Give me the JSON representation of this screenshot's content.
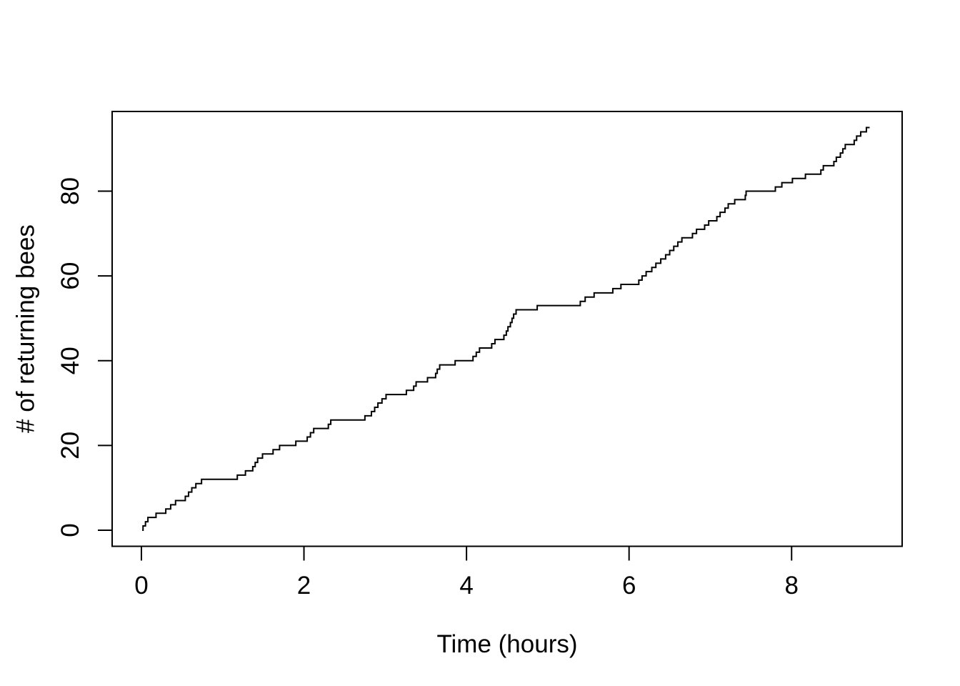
{
  "chart_data": {
    "type": "line",
    "subtype": "step-cumulative",
    "title": "",
    "xlabel": "Time (hours)",
    "ylabel": "# of returning bees",
    "xlim": [
      0,
      9
    ],
    "ylim": [
      0,
      95
    ],
    "axis_expansion": 0.04,
    "x_ticks": [
      0,
      2,
      4,
      6,
      8
    ],
    "y_ticks": [
      0,
      20,
      40,
      60,
      80
    ],
    "grid": false,
    "legend": "none",
    "line_color": "#000000",
    "background_color": "#ffffff",
    "start_point": [
      0.01,
      0
    ],
    "end_time": 8.96,
    "final_count": 95,
    "event_times": [
      0.02,
      0.05,
      0.08,
      0.18,
      0.3,
      0.36,
      0.42,
      0.54,
      0.58,
      0.62,
      0.67,
      0.74,
      1.18,
      1.28,
      1.37,
      1.4,
      1.43,
      1.49,
      1.62,
      1.7,
      1.9,
      2.04,
      2.08,
      2.12,
      2.3,
      2.33,
      2.75,
      2.83,
      2.87,
      2.91,
      2.96,
      3.01,
      3.26,
      3.35,
      3.38,
      3.52,
      3.62,
      3.64,
      3.67,
      3.86,
      4.08,
      4.12,
      4.16,
      4.31,
      4.35,
      4.46,
      4.49,
      4.51,
      4.54,
      4.56,
      4.58,
      4.61,
      4.87,
      5.4,
      5.46,
      5.57,
      5.8,
      5.9,
      6.12,
      6.16,
      6.21,
      6.28,
      6.33,
      6.39,
      6.45,
      6.5,
      6.55,
      6.6,
      6.65,
      6.78,
      6.83,
      6.93,
      6.98,
      7.08,
      7.12,
      7.18,
      7.22,
      7.3,
      7.43,
      7.44,
      7.8,
      7.88,
      8.01,
      8.17,
      8.36,
      8.39,
      8.52,
      8.55,
      8.6,
      8.63,
      8.66,
      8.77,
      8.8,
      8.85,
      8.92
    ]
  }
}
